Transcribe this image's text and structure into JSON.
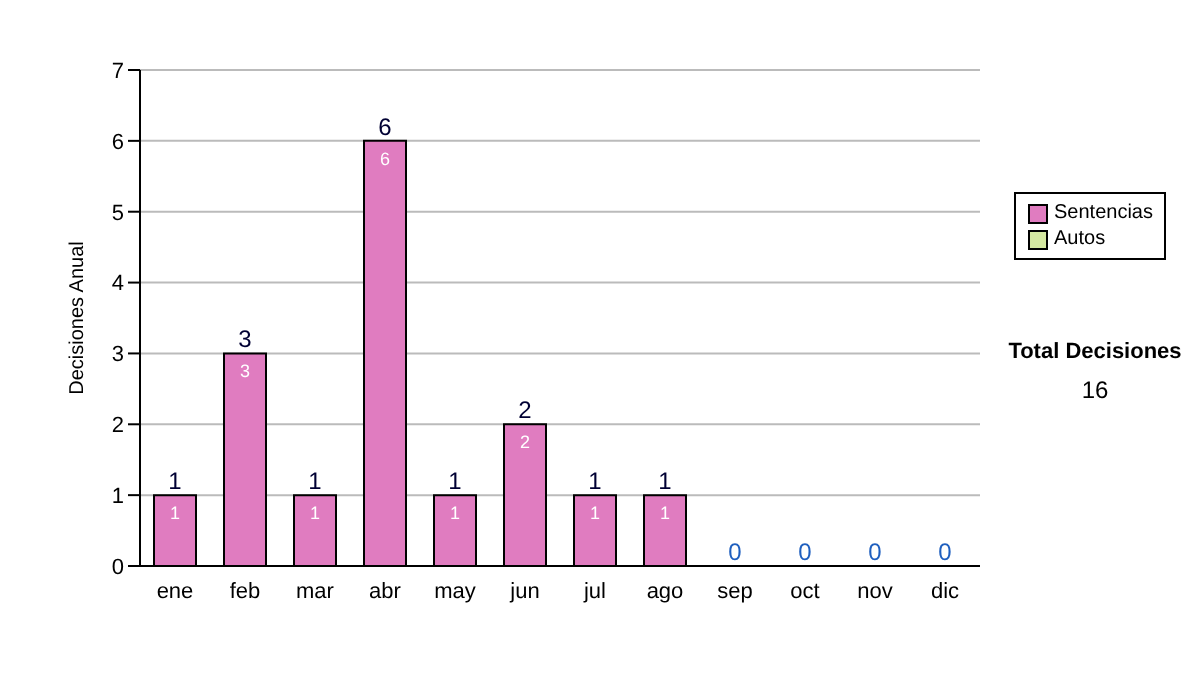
{
  "chart_data": {
    "type": "bar",
    "stacked": true,
    "ylabel": "Decisiones Anual",
    "categories": [
      "ene",
      "feb",
      "mar",
      "abr",
      "may",
      "jun",
      "jul",
      "ago",
      "sep",
      "oct",
      "nov",
      "dic"
    ],
    "series": [
      {
        "name": "Sentencias",
        "color": "#e07cc0",
        "values": [
          1,
          3,
          1,
          6,
          1,
          2,
          1,
          1,
          0,
          0,
          0,
          0
        ],
        "value_labels": [
          "1",
          "3",
          "1",
          "6",
          "1",
          "2",
          "1",
          "1",
          null,
          null,
          null,
          null
        ]
      },
      {
        "name": "Autos",
        "color": "#d4e8a0",
        "values": [
          0,
          0,
          0,
          0,
          0,
          0,
          0,
          0,
          0,
          0,
          0,
          0
        ]
      }
    ],
    "totals": [
      "1",
      "3",
      "1",
      "6",
      "1",
      "2",
      "1",
      "1",
      "0",
      "0",
      "0",
      "0"
    ],
    "ylim": [
      0,
      7
    ],
    "yticks": [
      0,
      1,
      2,
      3,
      4,
      5,
      6,
      7
    ],
    "grid": "y",
    "legend": "right",
    "annotations": [
      "Total Decisiones",
      "16"
    ]
  }
}
